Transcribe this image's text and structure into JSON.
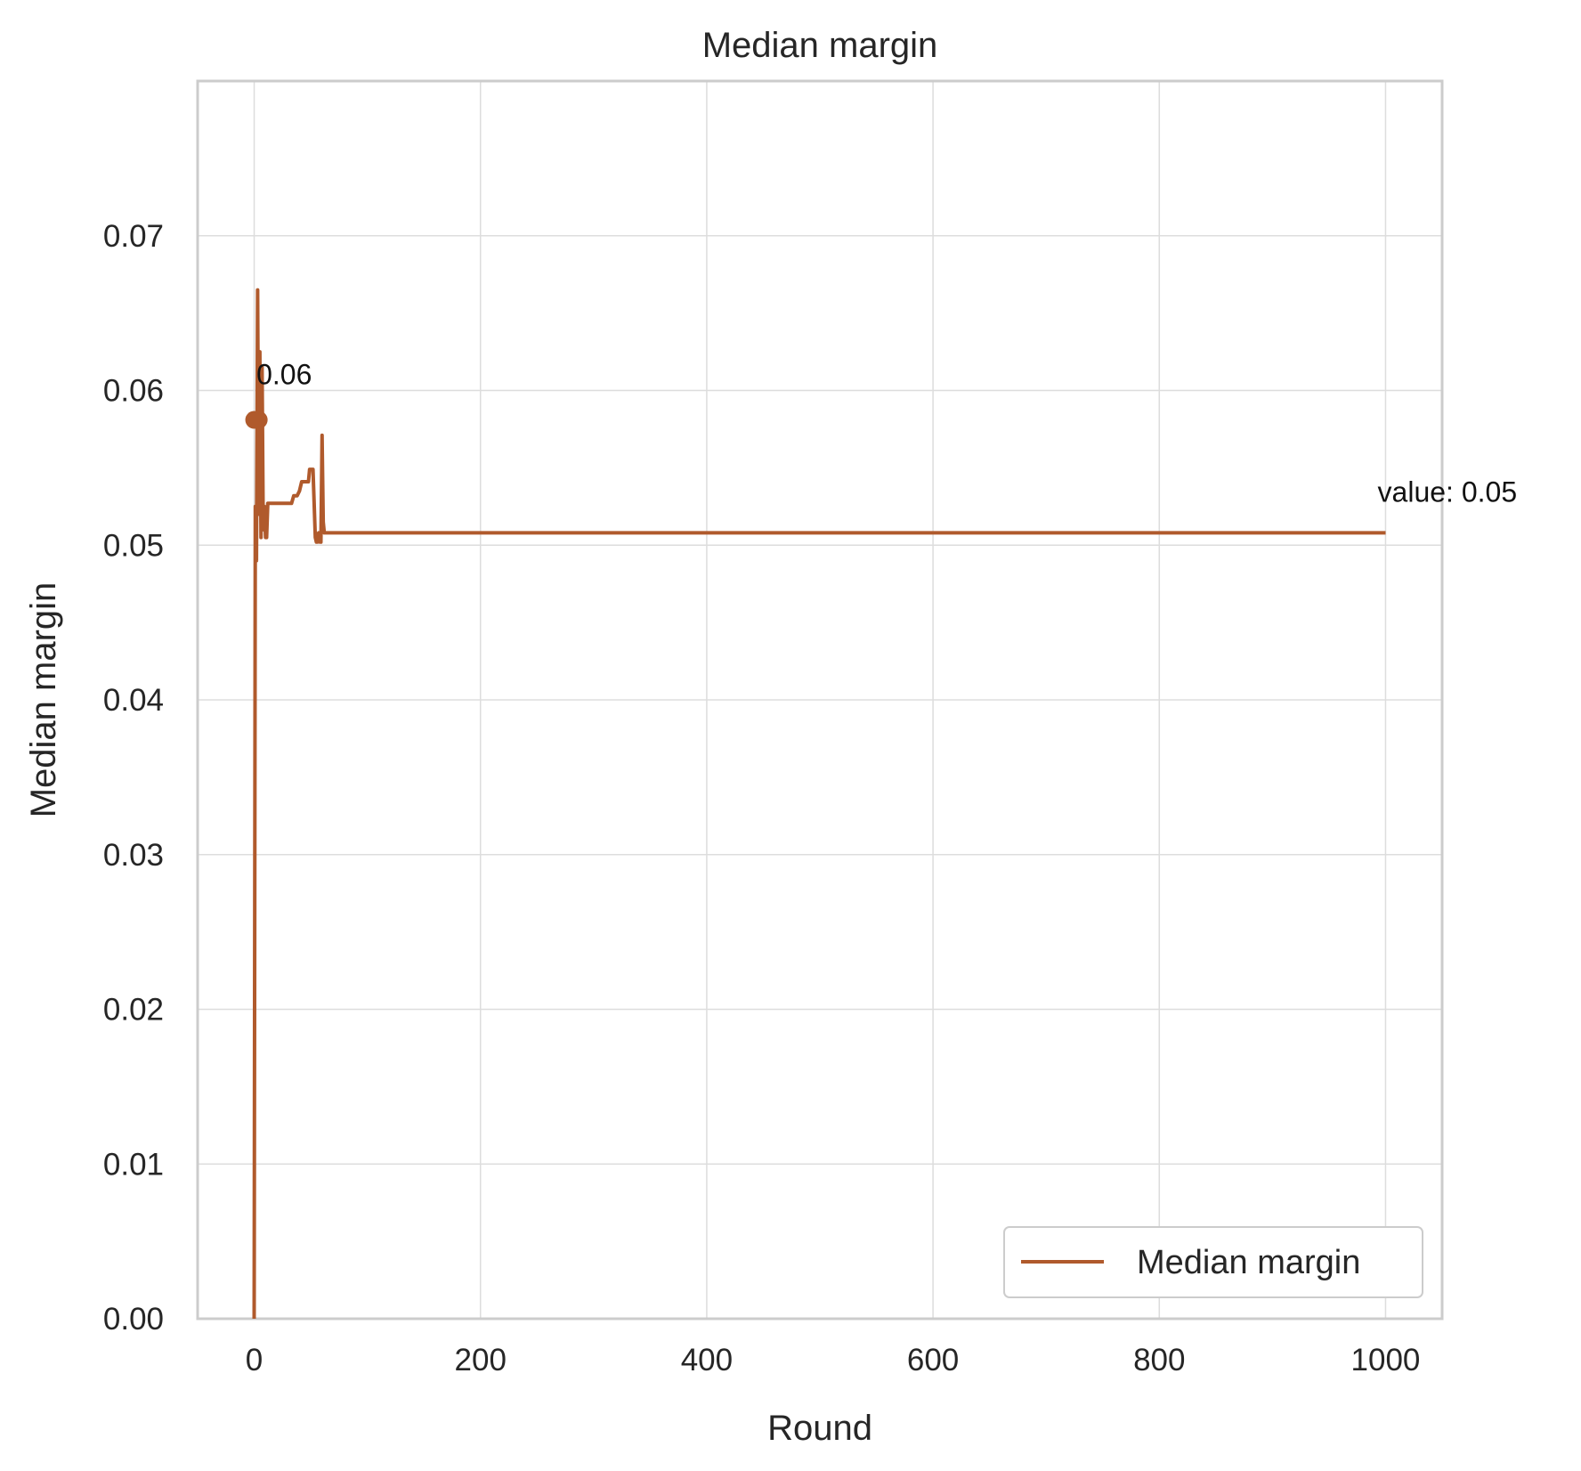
{
  "chart_data": {
    "type": "line",
    "title": "Median margin",
    "xlabel": "Round",
    "ylabel": "Median margin",
    "xlim": [
      -50,
      1050
    ],
    "ylim": [
      0,
      0.08
    ],
    "xticks": [
      0,
      200,
      400,
      600,
      800,
      1000
    ],
    "xtick_labels": [
      "0",
      "200",
      "400",
      "600",
      "800",
      "1000"
    ],
    "yticks": [
      0.0,
      0.01,
      0.02,
      0.03,
      0.04,
      0.05,
      0.06,
      0.07
    ],
    "ytick_labels": [
      "0.00",
      "0.01",
      "0.02",
      "0.03",
      "0.04",
      "0.05",
      "0.06",
      "0.07"
    ],
    "grid": true,
    "legend_position": "lower-right",
    "line_color": "#b05a2c",
    "series": [
      {
        "name": "Median margin",
        "x": [
          0,
          1,
          2,
          3,
          4,
          5,
          6,
          7,
          8,
          9,
          10,
          11,
          12,
          13,
          14,
          15,
          20,
          25,
          30,
          33,
          35,
          36,
          38,
          40,
          42,
          44,
          46,
          48,
          49,
          50,
          52,
          54,
          55,
          56,
          57,
          58,
          59,
          60,
          61,
          62,
          70,
          100,
          200,
          300,
          400,
          500,
          600,
          700,
          800,
          900,
          1000
        ],
        "y": [
          0.0,
          0.0525,
          0.049,
          0.0665,
          0.052,
          0.0625,
          0.0505,
          0.0615,
          0.051,
          0.0525,
          0.0505,
          0.0505,
          0.0527,
          0.0527,
          0.0527,
          0.0527,
          0.0527,
          0.0527,
          0.0527,
          0.0527,
          0.0532,
          0.0532,
          0.0532,
          0.0535,
          0.0541,
          0.0541,
          0.0541,
          0.0541,
          0.0549,
          0.0549,
          0.0549,
          0.0505,
          0.0502,
          0.0502,
          0.0508,
          0.0502,
          0.0502,
          0.0571,
          0.0515,
          0.0508,
          0.0508,
          0.0508,
          0.0508,
          0.0508,
          0.0508,
          0.0508,
          0.0508,
          0.0508,
          0.0508,
          0.0508,
          0.0508
        ]
      }
    ],
    "markers": [
      {
        "x": 0,
        "y": 0.0581
      },
      {
        "x": 4,
        "y": 0.0581
      }
    ],
    "annotations": [
      {
        "text": "0.06",
        "x": 2,
        "y": 0.0604
      },
      {
        "text": "value: 0.05",
        "x": 993,
        "y": 0.0528
      }
    ]
  }
}
